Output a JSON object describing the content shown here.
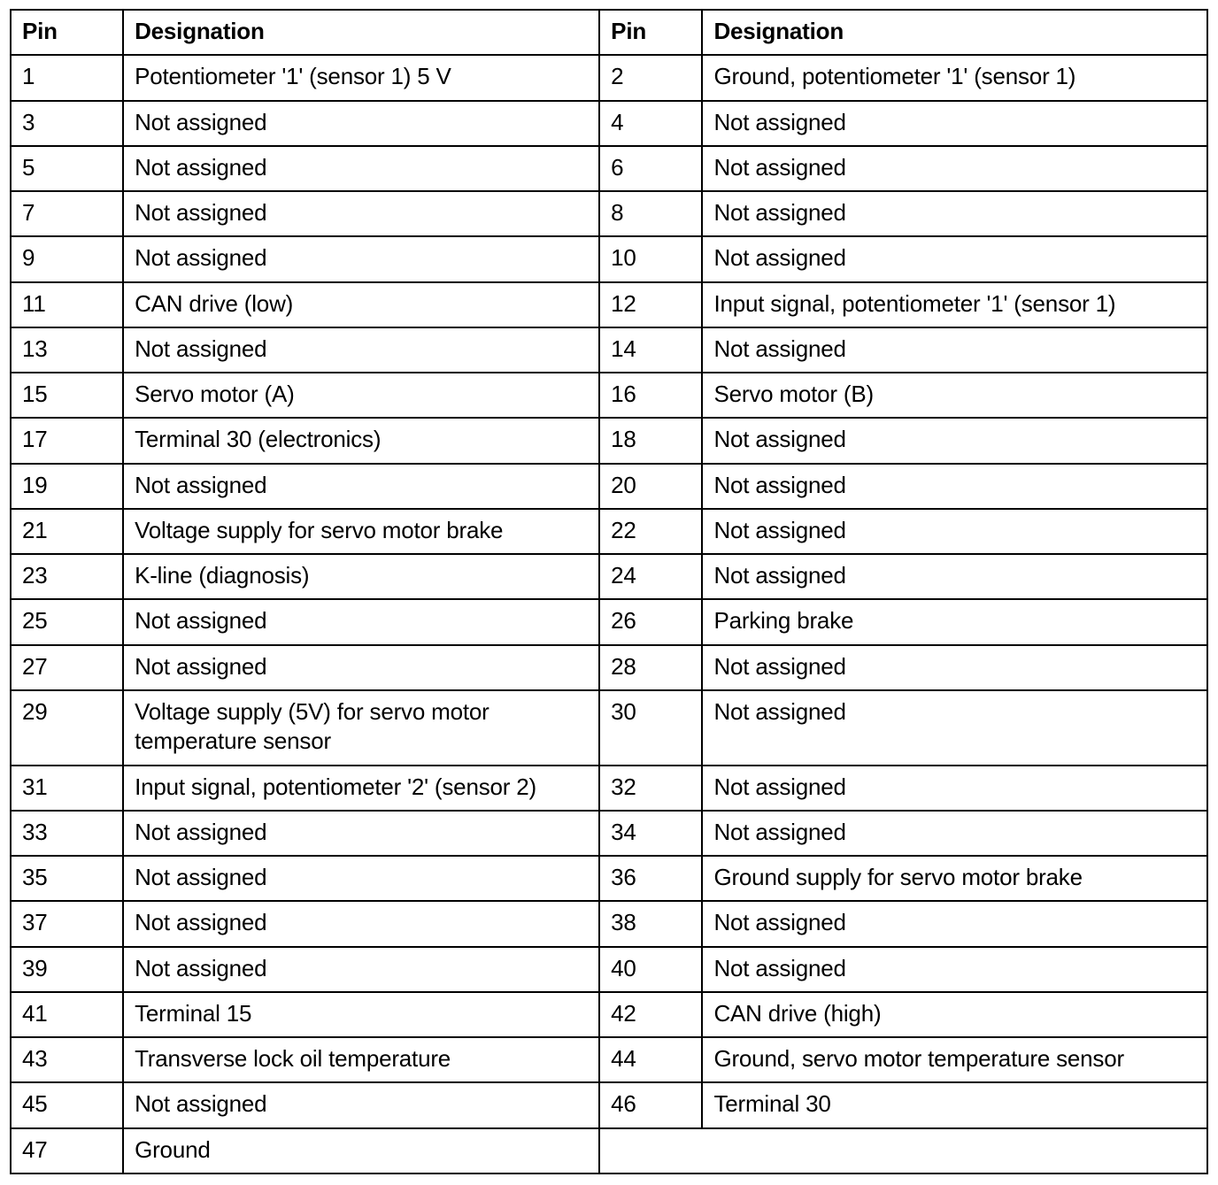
{
  "table": {
    "headers": [
      "Pin",
      "Designation",
      "Pin",
      "Designation"
    ],
    "rows": [
      [
        "1",
        "Potentiometer '1' (sensor 1) 5 V",
        "2",
        "Ground, potentiometer '1' (sensor 1)"
      ],
      [
        "3",
        "Not assigned",
        "4",
        "Not assigned"
      ],
      [
        "5",
        "Not assigned",
        "6",
        "Not assigned"
      ],
      [
        "7",
        "Not assigned",
        "8",
        "Not assigned"
      ],
      [
        "9",
        "Not assigned",
        "10",
        "Not assigned"
      ],
      [
        "11",
        "CAN drive (low)",
        "12",
        "Input signal, potentiometer '1' (sensor 1)"
      ],
      [
        "13",
        "Not assigned",
        "14",
        "Not assigned"
      ],
      [
        "15",
        "Servo motor (A)",
        "16",
        "Servo motor (B)"
      ],
      [
        "17",
        "Terminal 30 (electronics)",
        "18",
        "Not assigned"
      ],
      [
        "19",
        "Not assigned",
        "20",
        "Not assigned"
      ],
      [
        "21",
        "Voltage supply for servo motor brake",
        "22",
        "Not assigned"
      ],
      [
        "23",
        "K-line (diagnosis)",
        "24",
        "Not assigned"
      ],
      [
        "25",
        "Not assigned",
        "26",
        "Parking brake"
      ],
      [
        "27",
        "Not assigned",
        "28",
        "Not assigned"
      ],
      [
        "29",
        "Voltage supply (5V) for servo motor temperature sensor",
        "30",
        "Not assigned"
      ],
      [
        "31",
        "Input signal, potentiometer '2' (sensor 2)",
        "32",
        "Not assigned"
      ],
      [
        "33",
        "Not assigned",
        "34",
        "Not assigned"
      ],
      [
        "35",
        "Not assigned",
        "36",
        "Ground supply for servo motor brake"
      ],
      [
        "37",
        "Not assigned",
        "38",
        "Not assigned"
      ],
      [
        "39",
        "Not assigned",
        "40",
        "Not assigned"
      ],
      [
        "41",
        "Terminal 15",
        "42",
        "CAN drive (high)"
      ],
      [
        "43",
        "Transverse lock oil temperature",
        "44",
        "Ground, servo motor temperature sensor"
      ],
      [
        "45",
        "Not assigned",
        "46",
        "Terminal 30"
      ],
      [
        "47",
        "Ground",
        "",
        ""
      ]
    ],
    "last_row_right_merged": true
  },
  "colors": {
    "border": "#000000",
    "background": "#ffffff",
    "text": "#000000"
  }
}
